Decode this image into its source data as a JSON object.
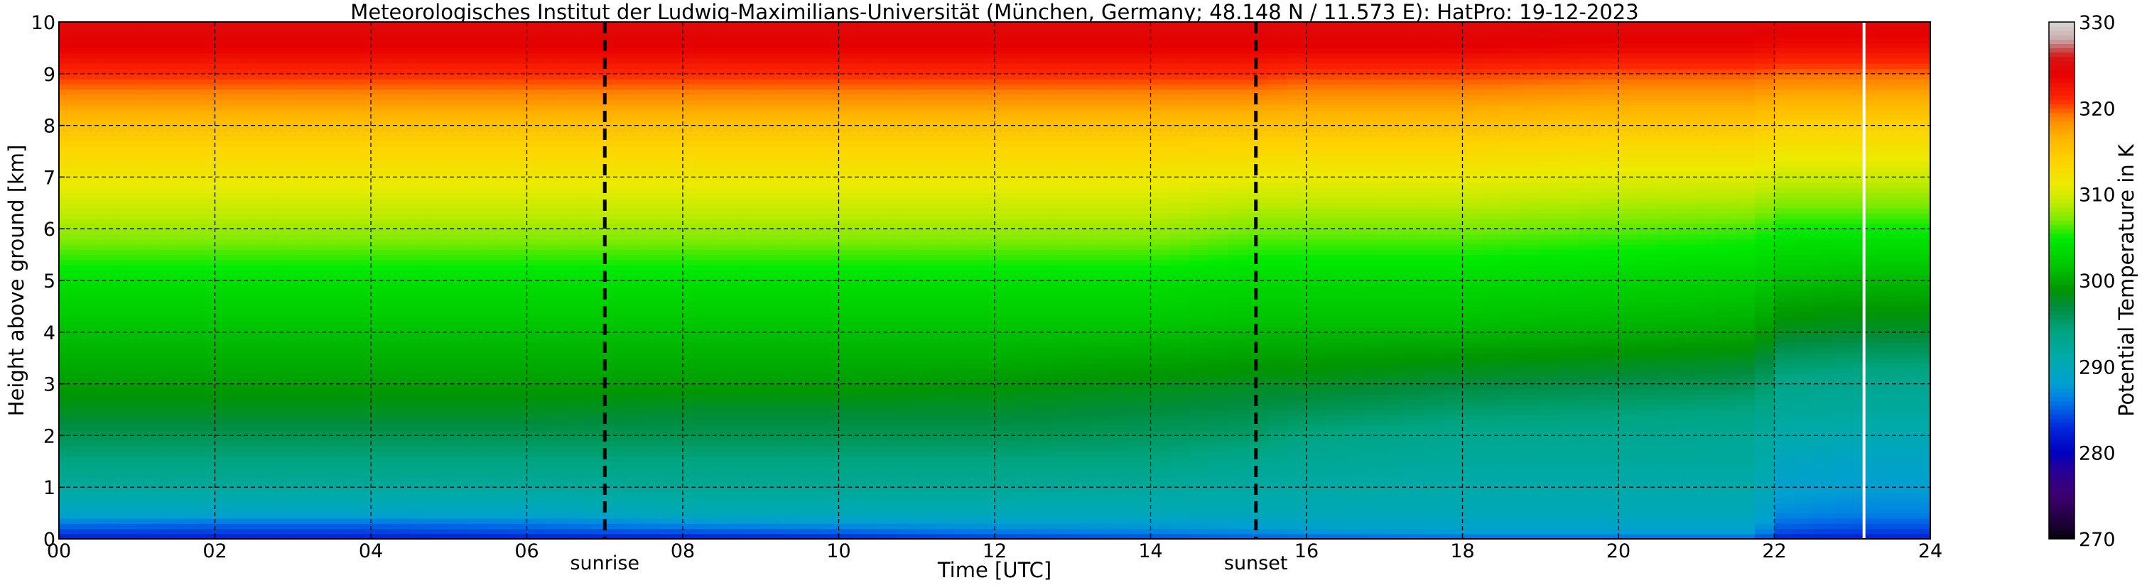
{
  "chart_data": {
    "type": "heatmap",
    "title": "Meteorologisches Institut der Ludwig-Maximilians-Universität (München, Germany; 48.148 N / 11.573 E):    HatPro: 19-12-2023",
    "xlabel": "Time [UTC]",
    "ylabel": "Height above ground [km]",
    "xlim": [
      0,
      24
    ],
    "ylim": [
      0,
      10
    ],
    "x_ticks": [
      "00",
      "02",
      "04",
      "06",
      "08",
      "10",
      "12",
      "14",
      "16",
      "18",
      "20",
      "22",
      "24"
    ],
    "y_ticks": [
      "0",
      "1",
      "2",
      "3",
      "4",
      "5",
      "6",
      "7",
      "8",
      "9",
      "10"
    ],
    "grid": true,
    "colorbar": {
      "label": "Potential Temperature in K",
      "range": [
        270,
        330
      ],
      "ticks": [
        "270",
        "280",
        "290",
        "300",
        "310",
        "320",
        "330"
      ]
    },
    "events": [
      {
        "label": "sunrise",
        "time": 7.0
      },
      {
        "label": "sunset",
        "time": 15.35
      }
    ],
    "data_gap_time": 23.15,
    "times": [
      0,
      2,
      4,
      6,
      8,
      10,
      12,
      14,
      15.35,
      16,
      18,
      20,
      21.8,
      22,
      23,
      24
    ],
    "heights": [
      0,
      0.1,
      0.3,
      0.5,
      1,
      1.5,
      2,
      2.5,
      3,
      3.5,
      4,
      5,
      6,
      7,
      8,
      9,
      9.5,
      10
    ],
    "theta": [
      [
        282,
        283.5,
        286,
        289,
        292,
        294,
        296,
        298,
        299.5,
        300.5,
        301.5,
        304,
        308,
        311.5,
        315.5,
        321,
        324,
        325
      ],
      [
        282,
        283.5,
        285.5,
        289,
        292,
        294,
        296,
        298,
        299.5,
        300.5,
        301.5,
        304,
        308,
        311.5,
        315.5,
        321,
        324,
        325
      ],
      [
        282,
        283.5,
        285.5,
        289,
        292,
        294,
        296,
        298,
        299.5,
        300.5,
        301.5,
        304,
        308,
        311.5,
        315.5,
        321,
        324,
        325
      ],
      [
        282,
        284,
        286,
        289,
        292,
        294,
        296,
        298,
        299.5,
        300.5,
        301.5,
        304,
        308,
        311.5,
        315.5,
        321,
        324,
        325
      ],
      [
        282,
        284,
        287,
        290,
        292.5,
        294,
        296,
        297.5,
        299.5,
        300.5,
        301.5,
        304,
        308,
        311.5,
        315.5,
        321,
        324,
        325
      ],
      [
        282.5,
        284.5,
        287.5,
        290,
        292.5,
        294,
        296,
        297.5,
        299.5,
        300.5,
        301.5,
        304,
        308,
        311.5,
        315.5,
        321,
        324,
        325
      ],
      [
        283.5,
        285.5,
        288,
        290,
        292.5,
        294,
        296,
        297.5,
        299,
        300.5,
        301.5,
        304,
        308,
        311.5,
        315.5,
        321,
        324,
        325
      ],
      [
        284,
        286,
        288,
        290,
        292,
        294,
        295.5,
        297,
        298.5,
        300,
        301.5,
        304,
        308,
        311.5,
        315.5,
        321,
        324,
        325
      ],
      [
        284.5,
        286.5,
        288.5,
        290,
        291.5,
        293,
        295,
        296.5,
        298,
        299.5,
        301,
        303.5,
        307,
        311,
        315.5,
        321,
        324,
        325
      ],
      [
        284.5,
        287,
        289,
        290,
        291.5,
        292.5,
        294,
        296,
        298,
        299.5,
        301,
        303.5,
        307,
        311,
        315.5,
        320.5,
        324,
        325
      ],
      [
        285,
        287.5,
        289,
        290,
        291,
        292,
        293,
        295,
        297,
        299,
        301,
        303.5,
        307,
        311,
        315.5,
        320.5,
        324,
        325
      ],
      [
        285,
        287.5,
        289,
        290,
        291,
        292,
        293,
        294.5,
        296.5,
        298.5,
        300.5,
        303,
        306.5,
        310.5,
        315,
        320,
        323.5,
        325
      ],
      [
        285,
        287.5,
        289,
        290,
        291,
        292,
        292.5,
        294,
        296,
        298,
        300,
        302.5,
        306,
        310.5,
        315,
        320,
        323.5,
        325
      ],
      [
        282,
        284,
        285.5,
        287,
        288.5,
        289.5,
        291,
        292.5,
        293.5,
        295.5,
        298,
        301.5,
        305,
        309.5,
        314,
        319.5,
        323,
        325
      ],
      [
        282,
        283.5,
        285,
        286.5,
        288,
        289,
        290.5,
        292,
        293,
        295,
        297.5,
        301,
        305,
        309.5,
        314,
        319.5,
        323,
        325
      ],
      [
        282,
        283.5,
        285,
        286.5,
        288,
        289,
        290.5,
        292,
        293,
        295,
        297.5,
        301,
        305,
        309.5,
        314,
        319.5,
        323,
        325
      ]
    ]
  }
}
